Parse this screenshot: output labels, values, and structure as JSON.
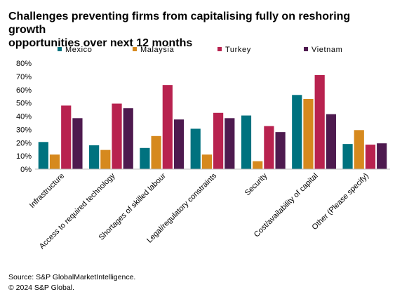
{
  "header": {
    "title_line1": "Challenges preventing firms from capitalising  fully on reshoring growth",
    "title_line2": "opportunities over next 12 months"
  },
  "footer": {
    "source": "Source: S&P GlobalMarketIntelligence.",
    "copyright": "© 2024 S&P Global."
  },
  "chart_data": {
    "type": "bar",
    "title": "Challenges preventing firms from capitalising  fully on reshoring growth opportunities over next 12 months",
    "xlabel": "",
    "ylabel": "",
    "ylim": [
      0,
      80
    ],
    "yticks": [
      0,
      10,
      20,
      30,
      40,
      50,
      60,
      70,
      80
    ],
    "ytick_labels": [
      "0%",
      "10%",
      "20%",
      "30%",
      "40%",
      "50%",
      "60%",
      "70%",
      "80%"
    ],
    "grid": false,
    "legend_position": "top",
    "categories": [
      "Infrastructure",
      "Access to required technology",
      "Shortages of skilled labour",
      "Legal/regulatory constraints",
      "Security",
      "Cost/availability of capital",
      "Other (Please specify)"
    ],
    "series": [
      {
        "name": "Mexico",
        "color": "#00727f",
        "values": [
          20.5,
          18,
          16,
          30.5,
          40.5,
          56,
          19
        ]
      },
      {
        "name": "Malaysia",
        "color": "#d6891e",
        "values": [
          11,
          14.5,
          25,
          11,
          6,
          53,
          29.5
        ]
      },
      {
        "name": "Turkey",
        "color": "#b8224f",
        "values": [
          48,
          49.5,
          63.5,
          42.5,
          32.5,
          71,
          18.5
        ]
      },
      {
        "name": "Vietnam",
        "color": "#4e1a4f",
        "values": [
          38.5,
          46,
          37.5,
          38.5,
          28,
          41.5,
          19.5
        ]
      }
    ]
  }
}
